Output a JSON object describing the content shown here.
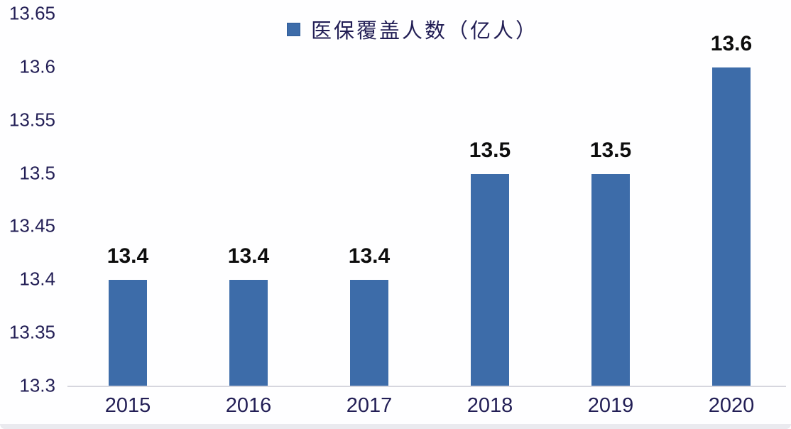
{
  "chart_data": {
    "type": "bar",
    "title": "",
    "xlabel": "",
    "ylabel": "",
    "legend": {
      "label": "医保覆盖人数（亿人）",
      "position": "top"
    },
    "categories": [
      "2015",
      "2016",
      "2017",
      "2018",
      "2019",
      "2020"
    ],
    "series": [
      {
        "name": "医保覆盖人数（亿人）",
        "values": [
          13.4,
          13.4,
          13.4,
          13.5,
          13.5,
          13.6
        ],
        "value_labels": [
          "13.4",
          "13.4",
          "13.4",
          "13.5",
          "13.5",
          "13.6"
        ]
      }
    ],
    "ylim": [
      13.3,
      13.65
    ],
    "ytick_labels": [
      "13.3",
      "13.35",
      "13.4",
      "13.45",
      "13.5",
      "13.55",
      "13.6",
      "13.65"
    ],
    "grid": false,
    "data_labels_shown": true,
    "colors": {
      "bar": "#3d6ca9",
      "axis_text": "#221e55",
      "data_label": "#0d0d0d",
      "axis_line": "#d6d6de",
      "background": "#fefeff"
    }
  }
}
